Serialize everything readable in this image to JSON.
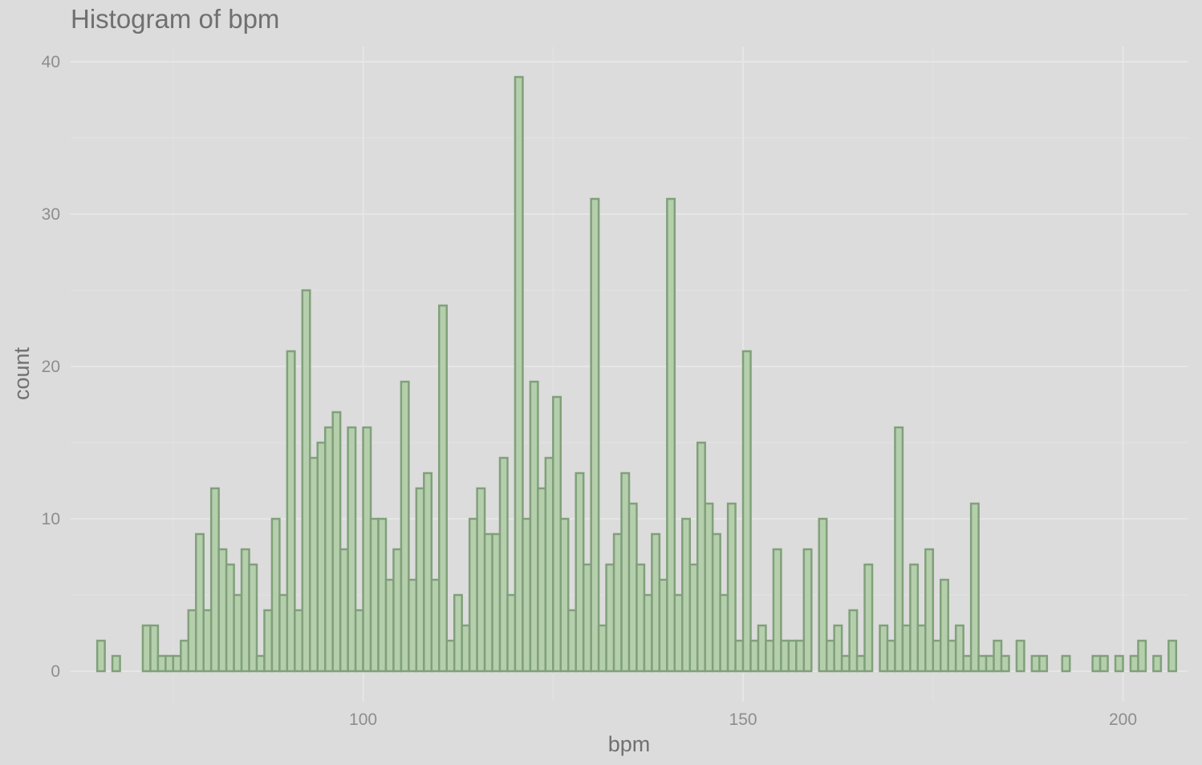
{
  "chart_data": {
    "type": "bar",
    "title": "Histogram of bpm",
    "xlabel": "bpm",
    "ylabel": "count",
    "x_ticks": [
      100,
      150,
      200
    ],
    "y_ticks": [
      0,
      10,
      20,
      30,
      40
    ],
    "x_tick_labels": [
      "100",
      "150",
      "200"
    ],
    "y_tick_labels": [
      "0",
      "10",
      "20",
      "30",
      "40"
    ],
    "xlim": [
      61.5,
      208.5
    ],
    "ylim": [
      -2,
      41
    ],
    "grid": true,
    "bin_start": 65,
    "bin_width": 1,
    "values": [
      2,
      0,
      1,
      0,
      0,
      0,
      3,
      3,
      1,
      1,
      1,
      2,
      4,
      9,
      4,
      12,
      8,
      7,
      5,
      8,
      7,
      1,
      4,
      10,
      5,
      21,
      4,
      25,
      14,
      15,
      16,
      17,
      8,
      16,
      4,
      16,
      10,
      10,
      6,
      8,
      19,
      6,
      12,
      13,
      6,
      24,
      2,
      5,
      3,
      10,
      12,
      9,
      9,
      14,
      5,
      39,
      10,
      19,
      12,
      14,
      18,
      10,
      4,
      13,
      7,
      31,
      3,
      7,
      9,
      13,
      11,
      7,
      5,
      9,
      6,
      31,
      5,
      10,
      7,
      15,
      11,
      9,
      5,
      11,
      2,
      21,
      2,
      3,
      2,
      8,
      2,
      2,
      2,
      8,
      0,
      10,
      2,
      3,
      1,
      4,
      1,
      7,
      0,
      3,
      2,
      16,
      3,
      7,
      3,
      8,
      2,
      6,
      2,
      3,
      1,
      11,
      1,
      1,
      2,
      1,
      0,
      2,
      0,
      1,
      1,
      0,
      0,
      1,
      0,
      0,
      0,
      1,
      1,
      0,
      1,
      0,
      1,
      2,
      0,
      1,
      0,
      2
    ],
    "colors": {
      "bar_fill": "#b5cfad",
      "bar_stroke": "#80a07a",
      "background": "#dcdcdc"
    }
  }
}
